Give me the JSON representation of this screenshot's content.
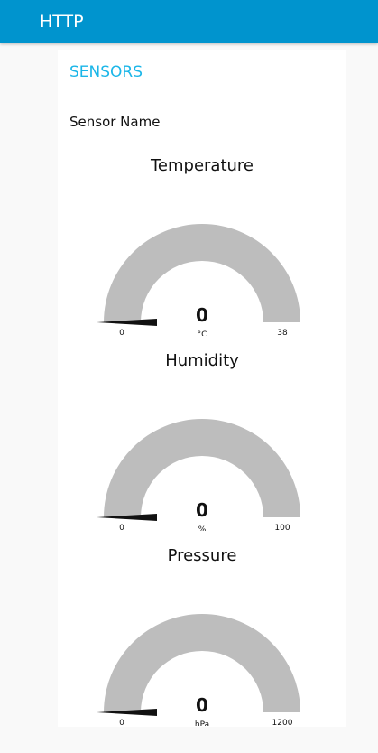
{
  "header": {
    "title": "HTTP"
  },
  "group": {
    "title": "SENSORS",
    "sensor_name_label": "Sensor Name"
  },
  "colors": {
    "header_bg": "#0094ce",
    "group_title": "#1bb6e8",
    "gauge_track": "#bdbdbd",
    "needle": "#111111"
  },
  "gauges": [
    {
      "title": "Temperature",
      "value": "0",
      "unit": "°C",
      "min": "0",
      "max": "38",
      "level": 0
    },
    {
      "title": "Humidity",
      "value": "0",
      "unit": "%",
      "min": "0",
      "max": "100",
      "level": 0
    },
    {
      "title": "Pressure",
      "value": "0",
      "unit": "hPa",
      "min": "0",
      "max": "1200",
      "level": 0
    }
  ]
}
